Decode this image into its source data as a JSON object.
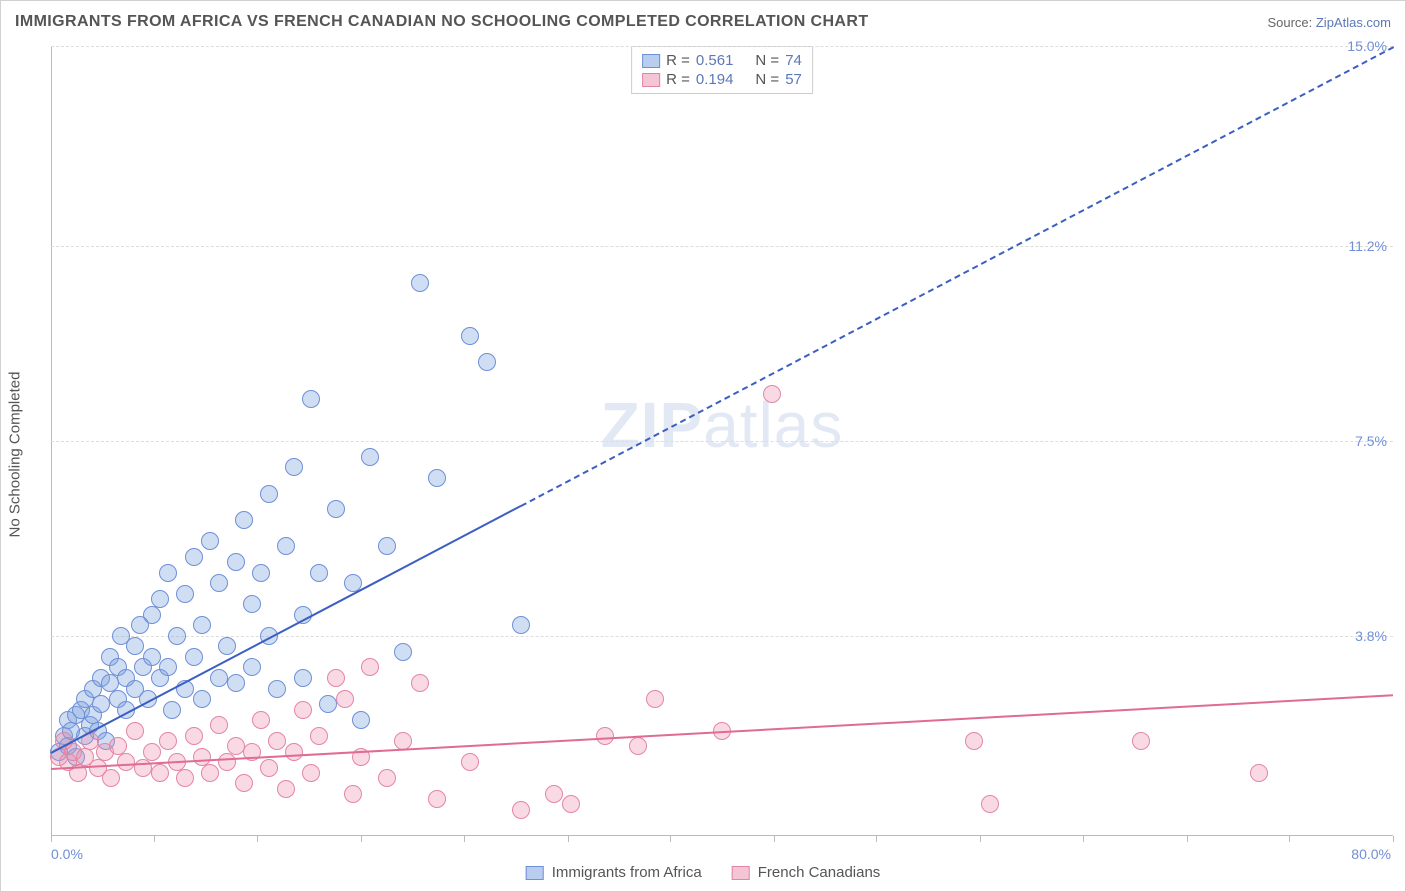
{
  "title": "IMMIGRANTS FROM AFRICA VS FRENCH CANADIAN NO SCHOOLING COMPLETED CORRELATION CHART",
  "source_prefix": "Source: ",
  "source_name": "ZipAtlas.com",
  "watermark": "ZIPatlas",
  "y_axis_title": "No Schooling Completed",
  "chart": {
    "type": "scatter-with-trend",
    "background_color": "#ffffff",
    "grid_color": "#dddddd",
    "axis_color": "#bbbbbb",
    "label_color": "#6f8fd8",
    "text_color": "#555555",
    "xlim": [
      0,
      80
    ],
    "ylim": [
      0,
      15
    ],
    "x_min_label": "0.0%",
    "x_max_label": "80.0%",
    "x_ticks": [
      0,
      6.15,
      12.3,
      18.5,
      24.6,
      30.8,
      36.9,
      43.1,
      49.2,
      55.4,
      61.5,
      67.7,
      73.8,
      80
    ],
    "y_ticks": [
      {
        "v": 3.8,
        "label": "3.8%"
      },
      {
        "v": 7.5,
        "label": "7.5%"
      },
      {
        "v": 11.2,
        "label": "11.2%"
      },
      {
        "v": 15.0,
        "label": "15.0%"
      }
    ]
  },
  "series": [
    {
      "key": "africa",
      "label": "Immigrants from Africa",
      "color_fill": "rgba(120,160,220,0.35)",
      "color_stroke": "#6f8fd8",
      "swatch_fill": "#b9cdef",
      "swatch_border": "#6f8fd8",
      "marker_radius": 9,
      "R": "0.561",
      "N": "74",
      "trend": {
        "x1": 0,
        "y1": 1.6,
        "x2": 80,
        "y2": 15.0,
        "solid_until_x": 28,
        "color": "#3b5ec2"
      },
      "points": [
        [
          0.5,
          1.6
        ],
        [
          0.8,
          1.9
        ],
        [
          1.0,
          1.7
        ],
        [
          1.0,
          2.2
        ],
        [
          1.2,
          2.0
        ],
        [
          1.5,
          2.3
        ],
        [
          1.5,
          1.5
        ],
        [
          1.8,
          2.4
        ],
        [
          2.0,
          2.6
        ],
        [
          2.0,
          1.9
        ],
        [
          2.3,
          2.1
        ],
        [
          2.5,
          2.8
        ],
        [
          2.5,
          2.3
        ],
        [
          2.8,
          2.0
        ],
        [
          3.0,
          3.0
        ],
        [
          3.0,
          2.5
        ],
        [
          3.3,
          1.8
        ],
        [
          3.5,
          2.9
        ],
        [
          3.5,
          3.4
        ],
        [
          4.0,
          3.2
        ],
        [
          4.0,
          2.6
        ],
        [
          4.2,
          3.8
        ],
        [
          4.5,
          2.4
        ],
        [
          4.5,
          3.0
        ],
        [
          5.0,
          3.6
        ],
        [
          5.0,
          2.8
        ],
        [
          5.3,
          4.0
        ],
        [
          5.5,
          3.2
        ],
        [
          5.8,
          2.6
        ],
        [
          6.0,
          3.4
        ],
        [
          6.0,
          4.2
        ],
        [
          6.5,
          3.0
        ],
        [
          6.5,
          4.5
        ],
        [
          7.0,
          5.0
        ],
        [
          7.0,
          3.2
        ],
        [
          7.2,
          2.4
        ],
        [
          7.5,
          3.8
        ],
        [
          8.0,
          4.6
        ],
        [
          8.0,
          2.8
        ],
        [
          8.5,
          3.4
        ],
        [
          8.5,
          5.3
        ],
        [
          9.0,
          4.0
        ],
        [
          9.0,
          2.6
        ],
        [
          9.5,
          5.6
        ],
        [
          10.0,
          3.0
        ],
        [
          10.0,
          4.8
        ],
        [
          10.5,
          3.6
        ],
        [
          11.0,
          2.9
        ],
        [
          11.0,
          5.2
        ],
        [
          11.5,
          6.0
        ],
        [
          12.0,
          3.2
        ],
        [
          12.0,
          4.4
        ],
        [
          12.5,
          5.0
        ],
        [
          13.0,
          6.5
        ],
        [
          13.0,
          3.8
        ],
        [
          13.5,
          2.8
        ],
        [
          14.0,
          5.5
        ],
        [
          14.5,
          7.0
        ],
        [
          15.0,
          4.2
        ],
        [
          15.0,
          3.0
        ],
        [
          15.5,
          8.3
        ],
        [
          16.0,
          5.0
        ],
        [
          16.5,
          2.5
        ],
        [
          17.0,
          6.2
        ],
        [
          18.0,
          4.8
        ],
        [
          18.5,
          2.2
        ],
        [
          19.0,
          7.2
        ],
        [
          20.0,
          5.5
        ],
        [
          21.0,
          3.5
        ],
        [
          22.0,
          10.5
        ],
        [
          23.0,
          6.8
        ],
        [
          25.0,
          9.5
        ],
        [
          26.0,
          9.0
        ],
        [
          28.0,
          4.0
        ]
      ]
    },
    {
      "key": "french",
      "label": "French Canadians",
      "color_fill": "rgba(235,140,170,0.32)",
      "color_stroke": "#e485a4",
      "swatch_fill": "#f4c5d4",
      "swatch_border": "#e485a4",
      "marker_radius": 9,
      "R": "0.194",
      "N": "57",
      "trend": {
        "x1": 0,
        "y1": 1.3,
        "x2": 80,
        "y2": 2.7,
        "solid_until_x": 80,
        "color": "#e06b93"
      },
      "points": [
        [
          0.5,
          1.5
        ],
        [
          0.8,
          1.8
        ],
        [
          1.0,
          1.4
        ],
        [
          1.3,
          1.6
        ],
        [
          1.6,
          1.2
        ],
        [
          2.0,
          1.5
        ],
        [
          2.3,
          1.8
        ],
        [
          2.8,
          1.3
        ],
        [
          3.2,
          1.6
        ],
        [
          3.6,
          1.1
        ],
        [
          4.0,
          1.7
        ],
        [
          4.5,
          1.4
        ],
        [
          5.0,
          2.0
        ],
        [
          5.5,
          1.3
        ],
        [
          6.0,
          1.6
        ],
        [
          6.5,
          1.2
        ],
        [
          7.0,
          1.8
        ],
        [
          7.5,
          1.4
        ],
        [
          8.0,
          1.1
        ],
        [
          8.5,
          1.9
        ],
        [
          9.0,
          1.5
        ],
        [
          9.5,
          1.2
        ],
        [
          10.0,
          2.1
        ],
        [
          10.5,
          1.4
        ],
        [
          11.0,
          1.7
        ],
        [
          11.5,
          1.0
        ],
        [
          12.0,
          1.6
        ],
        [
          12.5,
          2.2
        ],
        [
          13.0,
          1.3
        ],
        [
          13.5,
          1.8
        ],
        [
          14.0,
          0.9
        ],
        [
          14.5,
          1.6
        ],
        [
          15.0,
          2.4
        ],
        [
          15.5,
          1.2
        ],
        [
          16.0,
          1.9
        ],
        [
          17.0,
          3.0
        ],
        [
          17.5,
          2.6
        ],
        [
          18.0,
          0.8
        ],
        [
          18.5,
          1.5
        ],
        [
          19.0,
          3.2
        ],
        [
          20.0,
          1.1
        ],
        [
          21.0,
          1.8
        ],
        [
          22.0,
          2.9
        ],
        [
          23.0,
          0.7
        ],
        [
          25.0,
          1.4
        ],
        [
          28.0,
          0.5
        ],
        [
          30.0,
          0.8
        ],
        [
          31.0,
          0.6
        ],
        [
          33.0,
          1.9
        ],
        [
          35.0,
          1.7
        ],
        [
          36.0,
          2.6
        ],
        [
          40.0,
          2.0
        ],
        [
          43.0,
          8.4
        ],
        [
          55.0,
          1.8
        ],
        [
          56.0,
          0.6
        ],
        [
          65.0,
          1.8
        ],
        [
          72.0,
          1.2
        ]
      ]
    }
  ],
  "stats_labels": {
    "R": "R =",
    "N": "N ="
  }
}
